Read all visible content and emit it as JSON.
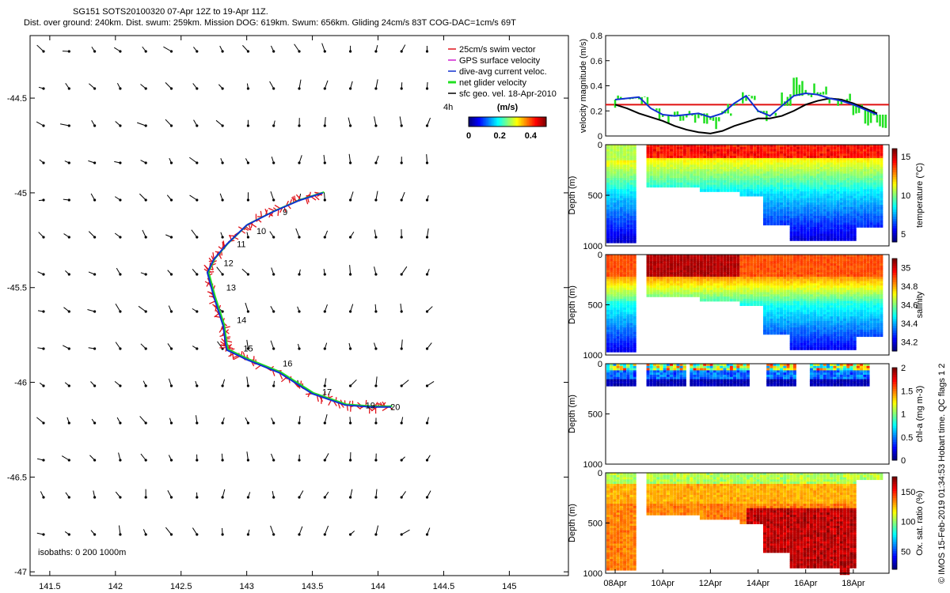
{
  "title": {
    "line1": "SG151 SOTS20100320 07-Apr 12Z to 19-Apr 11Z.",
    "line2": "Dist. over ground: 240km. Dist. swum: 259km. Mission DOG: 619km. Swum: 656km. Gliding 24cm/s 83T COG-DAC=1cm/s 69T"
  },
  "colors": {
    "swim_vector": "#e0141c",
    "gps_velocity": "#d020d0",
    "dac_line": "#1030d0",
    "net_velocity": "#20e020",
    "sfc_geo": "#000000",
    "speed_threshold": "#e01010"
  },
  "chart_data": [
    {
      "type": "scatter",
      "panel": "track-map",
      "xlim": [
        141.35,
        145.45
      ],
      "ylim": [
        -47.02,
        -44.17
      ],
      "x_ticks": [
        "141.5",
        "142",
        "142.5",
        "143",
        "143.5",
        "144",
        "144.5",
        "145"
      ],
      "x_tick_values": [
        141.5,
        142,
        142.5,
        143,
        143.5,
        144,
        144.5,
        145
      ],
      "y_ticks": [
        "-44.5",
        "-45",
        "-45.5",
        "-46",
        "-46.5",
        "-47"
      ],
      "y_tick_values": [
        -44.5,
        -45,
        -45.5,
        -46,
        -46.5,
        -47
      ],
      "legend": {
        "placement": "top-right",
        "entries": [
          "25cm/s swim vector",
          "GPS surface velocity",
          "dive-avg current veloc.",
          "net glider velocity",
          "sfc geo. vel. 18-Apr-2010"
        ]
      },
      "colorbar": {
        "label": "(m/s)",
        "timestep": "4h",
        "ticks": [
          "0",
          "0.2",
          "0.4"
        ],
        "range": [
          0,
          0.5
        ]
      },
      "isobaths_note": "isobaths: 0   200  1000m",
      "track": {
        "lon": [
          143.58,
          143.4,
          143.2,
          143.0,
          142.85,
          142.75,
          142.7,
          142.75,
          142.82,
          142.84,
          142.85,
          143.0,
          143.25,
          143.5,
          143.75,
          143.95,
          144.1
        ],
        "lat": [
          -45.0,
          -45.04,
          -45.1,
          -45.17,
          -45.27,
          -45.35,
          -45.42,
          -45.55,
          -45.7,
          -45.8,
          -45.83,
          -45.88,
          -45.95,
          -46.06,
          -46.12,
          -46.13,
          -46.13
        ]
      },
      "day_labels": [
        {
          "label": "9",
          "lon": 143.25,
          "lat": -45.1
        },
        {
          "label": "10",
          "lon": 143.05,
          "lat": -45.2
        },
        {
          "label": "11",
          "lon": 142.9,
          "lat": -45.27
        },
        {
          "label": "12",
          "lon": 142.8,
          "lat": -45.37
        },
        {
          "label": "13",
          "lon": 142.82,
          "lat": -45.5
        },
        {
          "label": "14",
          "lon": 142.9,
          "lat": -45.67
        },
        {
          "label": "15",
          "lon": 142.95,
          "lat": -45.82
        },
        {
          "label": "16",
          "lon": 143.25,
          "lat": -45.9
        },
        {
          "label": "17",
          "lon": 143.55,
          "lat": -46.05
        },
        {
          "label": "19",
          "lon": 143.88,
          "lat": -46.12
        },
        {
          "label": "20",
          "lon": 144.07,
          "lat": -46.13
        }
      ]
    },
    {
      "type": "line",
      "panel": "velocity-timeseries",
      "ylabel": "velocity magnitude (m/s)",
      "ylim": [
        0,
        0.8
      ],
      "y_ticks": [
        "0",
        "0.2",
        "0.4",
        "0.6",
        "0.8"
      ],
      "threshold": 0.25,
      "x_days": [
        8,
        8.5,
        9,
        9.5,
        10,
        10.5,
        11,
        11.5,
        12,
        12.5,
        13,
        13.5,
        14,
        14.5,
        15,
        15.5,
        16,
        16.5,
        17,
        17.5,
        18,
        18.5,
        19
      ],
      "series": [
        {
          "key": "dive_avg",
          "values": [
            0.29,
            0.3,
            0.31,
            0.22,
            0.17,
            0.16,
            0.17,
            0.18,
            0.15,
            0.18,
            0.26,
            0.32,
            0.2,
            0.16,
            0.24,
            0.32,
            0.34,
            0.33,
            0.3,
            0.28,
            0.25,
            0.21,
            0.17
          ]
        },
        {
          "key": "sfc_geo",
          "values": [
            0.25,
            0.22,
            0.18,
            0.15,
            0.12,
            0.08,
            0.05,
            0.03,
            0.02,
            0.04,
            0.08,
            0.11,
            0.14,
            0.14,
            0.16,
            0.2,
            0.25,
            0.28,
            0.3,
            0.29,
            0.26,
            0.22,
            0.18
          ]
        },
        {
          "key": "net_velocity",
          "values": [
            0.27,
            0.29,
            0.3,
            0.18,
            0.12,
            0.14,
            0.16,
            0.12,
            0.1,
            0.2,
            0.3,
            0.28,
            0.16,
            0.18,
            0.3,
            0.42,
            0.36,
            0.34,
            0.26,
            0.3,
            0.2,
            0.12,
            0.08
          ]
        }
      ]
    },
    {
      "type": "heatmap",
      "panel": "temperature-section",
      "ylabel": "Depth (m)",
      "colorbar_label": "temperature (°C)",
      "ylim": [
        1000,
        0
      ],
      "y_ticks": [
        "0",
        "500",
        "1000"
      ],
      "cbar_ticks": [
        "5",
        "10",
        "15"
      ],
      "cbar_range": [
        4,
        16
      ]
    },
    {
      "type": "heatmap",
      "panel": "salinity-section",
      "ylabel": "Depth (m)",
      "colorbar_label": "salinity",
      "ylim": [
        1000,
        0
      ],
      "y_ticks": [
        "0",
        "500",
        "1000"
      ],
      "cbar_ticks": [
        "35",
        "34.8",
        "34.6",
        "34.4",
        "34.2"
      ],
      "cbar_range": [
        34.1,
        35.1
      ]
    },
    {
      "type": "heatmap",
      "panel": "chla-section",
      "ylabel": "Depth (m)",
      "colorbar_label": "chl-a (mg m-3)",
      "ylim": [
        1000,
        0
      ],
      "y_ticks": [
        "0",
        "500",
        "1000"
      ],
      "cbar_ticks": [
        "0",
        "0.5",
        "1",
        "1.5",
        "2"
      ],
      "cbar_range": [
        0,
        2
      ]
    },
    {
      "type": "heatmap",
      "panel": "oxygen-section",
      "ylabel": "Depth (m)",
      "colorbar_label": "Ox. sat. ratio (%)",
      "ylim": [
        1000,
        0
      ],
      "y_ticks": [
        "0",
        "500",
        "1000"
      ],
      "cbar_ticks": [
        "50",
        "100",
        "150"
      ],
      "cbar_range": [
        20,
        175
      ],
      "x_ticks": [
        "08Apr",
        "10Apr",
        "12Apr",
        "14Apr",
        "16Apr",
        "18Apr"
      ],
      "x_days": [
        8,
        10,
        12,
        14,
        16,
        18
      ]
    }
  ],
  "credit": "© IMOS 15-Feb-2019 01:34:53 Hobart time. QC flags 1  2"
}
